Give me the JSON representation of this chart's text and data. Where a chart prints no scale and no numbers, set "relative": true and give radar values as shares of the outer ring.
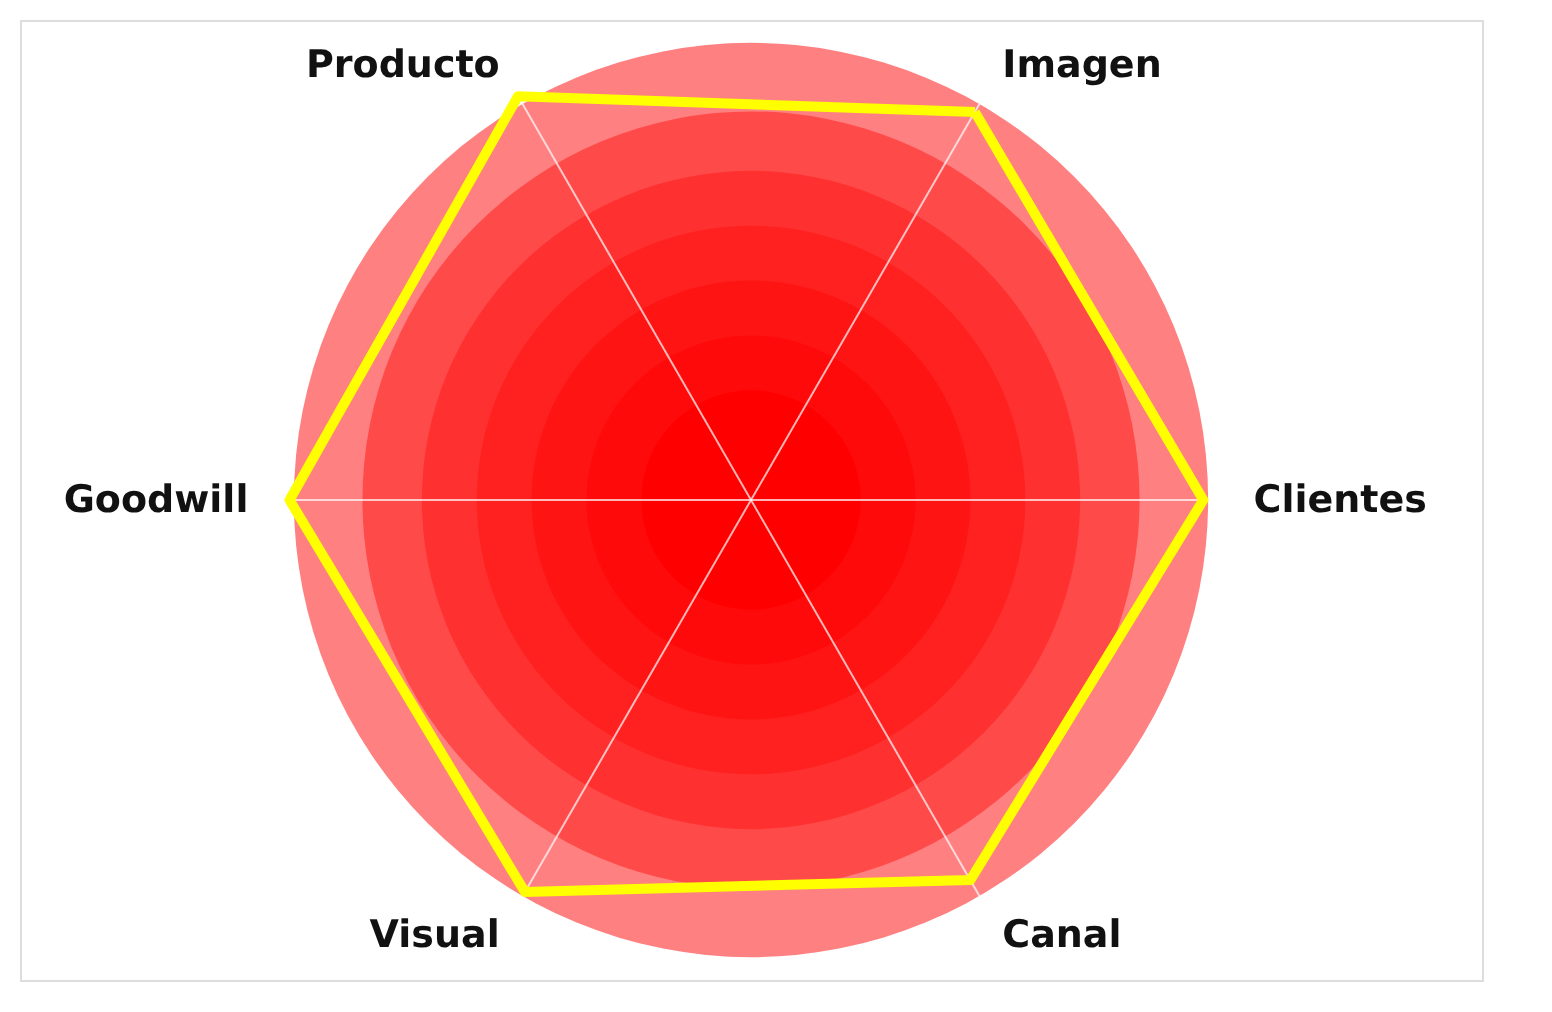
{
  "chart_data": {
    "type": "radar",
    "relative": true,
    "grid": true,
    "categories": [
      "Imagen",
      "Clientes",
      "Canal",
      "Visual",
      "Goodwill",
      "Producto"
    ],
    "series": [
      {
        "color": "#ffff00",
        "values": [
          0.98,
          0.99,
          0.96,
          0.99,
          1.01,
          1.02
        ]
      }
    ]
  }
}
